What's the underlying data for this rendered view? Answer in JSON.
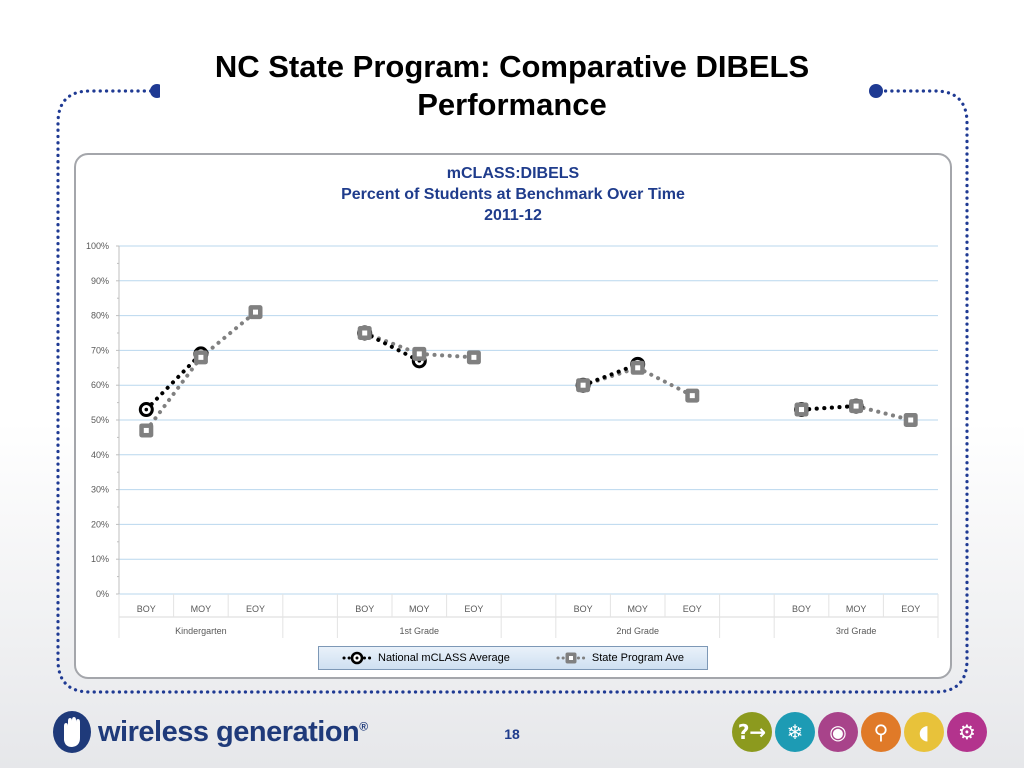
{
  "slide": {
    "title_line1": "NC State Program: Comparative DIBELS",
    "title_line2": "Performance",
    "page_number": "18"
  },
  "brand": {
    "logo_icon": "hand-icon",
    "logo_text": "wireless generation",
    "logo_reg": "®",
    "badges": [
      {
        "icon": "question-arrow-icon",
        "glyph": "?→",
        "color": "#8c9a1e"
      },
      {
        "icon": "snowflake-icon",
        "glyph": "❄",
        "color": "#1d9bb4"
      },
      {
        "icon": "eye-icon",
        "glyph": "◉",
        "color": "#a8438a"
      },
      {
        "icon": "bicycle-icon",
        "glyph": "⚲",
        "color": "#e07a28"
      },
      {
        "icon": "egg-icon",
        "glyph": "◖",
        "color": "#e8c23a"
      },
      {
        "icon": "gears-icon",
        "glyph": "⚙",
        "color": "#b3338d"
      }
    ]
  },
  "colors": {
    "dots": "#1f3a93",
    "title": "#1f3c8c",
    "national": "#000000",
    "state": "#808080",
    "grid": "#b9d7ee"
  },
  "chart_data": {
    "type": "line",
    "title_line1": "mCLASS:DIBELS",
    "title_line2": "Percent of Students at Benchmark Over Time",
    "title_line3": "2011-12",
    "groups": [
      {
        "name": "Kindergarten",
        "periods": [
          "BOY",
          "MOY",
          "EOY"
        ]
      },
      {
        "name": "1st Grade",
        "periods": [
          "BOY",
          "MOY",
          "EOY"
        ]
      },
      {
        "name": "2nd Grade",
        "periods": [
          "BOY",
          "MOY",
          "EOY"
        ]
      },
      {
        "name": "3rd Grade",
        "periods": [
          "BOY",
          "MOY",
          "EOY"
        ]
      }
    ],
    "ylim": [
      0,
      100
    ],
    "yticks": [
      "0%",
      "10%",
      "20%",
      "30%",
      "40%",
      "50%",
      "60%",
      "70%",
      "80%",
      "90%",
      "100%"
    ],
    "series": [
      {
        "name": "National mCLASS Average",
        "style": "black dotted line with ring markers",
        "values": [
          [
            53,
            69,
            null
          ],
          [
            75,
            67,
            null
          ],
          [
            60,
            66,
            null
          ],
          [
            53,
            54,
            null
          ]
        ]
      },
      {
        "name": "State Program Ave",
        "style": "grey dotted line with square markers",
        "values": [
          [
            47,
            68,
            81
          ],
          [
            75,
            69,
            68
          ],
          [
            60,
            65,
            57
          ],
          [
            53,
            54,
            50
          ]
        ]
      }
    ],
    "legend_position": "bottom"
  }
}
